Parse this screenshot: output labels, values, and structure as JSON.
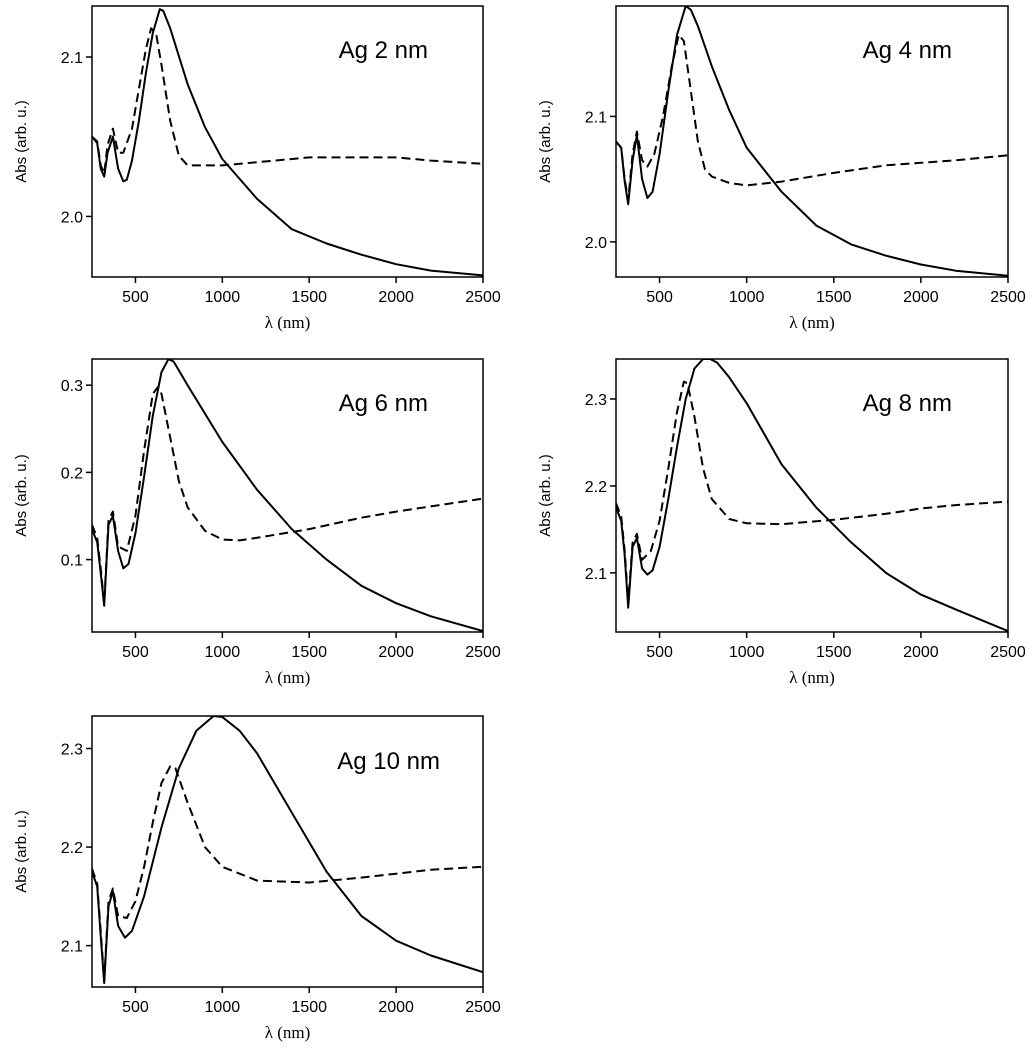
{
  "chart_data": [
    {
      "type": "line",
      "label": "Ag 2 nm",
      "xlabel": "λ  (nm)",
      "ylabel": "Abs (arb. u.)",
      "xlim": [
        250,
        2500
      ],
      "ylim": [
        1.962,
        2.132
      ],
      "xticks": [
        500,
        1000,
        1500,
        2000,
        2500
      ],
      "yticks": [
        2.0,
        2.1
      ],
      "ytick_labels": [
        "2.0",
        "2.1"
      ],
      "series": [
        {
          "style": "solid",
          "x": [
            250,
            280,
            300,
            320,
            340,
            370,
            400,
            430,
            450,
            480,
            520,
            560,
            600,
            640,
            660,
            700,
            800,
            900,
            1000,
            1200,
            1400,
            1600,
            1800,
            2000,
            2200,
            2500
          ],
          "y": [
            2.05,
            2.046,
            2.03,
            2.025,
            2.04,
            2.05,
            2.03,
            2.022,
            2.023,
            2.035,
            2.06,
            2.09,
            2.115,
            2.13,
            2.129,
            2.118,
            2.083,
            2.056,
            2.036,
            2.011,
            1.992,
            1.983,
            1.976,
            1.97,
            1.966,
            1.963
          ]
        },
        {
          "style": "dashed",
          "x": [
            250,
            280,
            300,
            320,
            340,
            370,
            400,
            430,
            480,
            520,
            560,
            590,
            620,
            650,
            700,
            750,
            800,
            1000,
            1200,
            1500,
            1800,
            2000,
            2200,
            2500
          ],
          "y": [
            2.05,
            2.047,
            2.032,
            2.027,
            2.045,
            2.055,
            2.04,
            2.04,
            2.055,
            2.08,
            2.105,
            2.118,
            2.114,
            2.095,
            2.06,
            2.038,
            2.032,
            2.032,
            2.034,
            2.037,
            2.037,
            2.037,
            2.035,
            2.033
          ]
        }
      ]
    },
    {
      "type": "line",
      "label": "Ag 4 nm",
      "xlabel": "λ  (nm)",
      "ylabel": "Abs (arb. u.)",
      "xlim": [
        250,
        2500
      ],
      "ylim": [
        1.972,
        2.188
      ],
      "xticks": [
        500,
        1000,
        1500,
        2000,
        2500
      ],
      "yticks": [
        2.0,
        2.1
      ],
      "ytick_labels": [
        "2.0",
        "2.1"
      ],
      "series": [
        {
          "style": "solid",
          "x": [
            250,
            280,
            300,
            320,
            345,
            370,
            400,
            430,
            460,
            500,
            550,
            600,
            650,
            680,
            720,
            800,
            900,
            1000,
            1200,
            1400,
            1600,
            1800,
            2000,
            2200,
            2500
          ],
          "y": [
            2.08,
            2.075,
            2.048,
            2.03,
            2.065,
            2.085,
            2.05,
            2.035,
            2.04,
            2.07,
            2.12,
            2.165,
            2.188,
            2.185,
            2.172,
            2.14,
            2.105,
            2.075,
            2.04,
            2.013,
            1.998,
            1.989,
            1.982,
            1.977,
            1.973
          ]
        },
        {
          "style": "dashed",
          "x": [
            250,
            280,
            300,
            320,
            345,
            370,
            400,
            430,
            470,
            520,
            570,
            610,
            640,
            680,
            720,
            760,
            800,
            900,
            1000,
            1200,
            1500,
            1800,
            2000,
            2200,
            2500
          ],
          "y": [
            2.08,
            2.075,
            2.05,
            2.033,
            2.07,
            2.088,
            2.065,
            2.06,
            2.07,
            2.1,
            2.14,
            2.165,
            2.16,
            2.12,
            2.08,
            2.058,
            2.052,
            2.047,
            2.045,
            2.048,
            2.055,
            2.061,
            2.063,
            2.065,
            2.069
          ]
        }
      ]
    },
    {
      "type": "line",
      "label": "Ag 6 nm",
      "xlabel": "λ  (nm)",
      "ylabel": "Abs (arb. u.)",
      "xlim": [
        250,
        2500
      ],
      "ylim": [
        0.017,
        0.33
      ],
      "xticks": [
        500,
        1000,
        1500,
        2000,
        2500
      ],
      "yticks": [
        0.1,
        0.2,
        0.3
      ],
      "ytick_labels": [
        "0.1",
        "0.2",
        "0.3"
      ],
      "series": [
        {
          "style": "solid",
          "x": [
            250,
            280,
            300,
            320,
            345,
            370,
            400,
            430,
            460,
            500,
            550,
            600,
            650,
            690,
            720,
            800,
            1000,
            1200,
            1400,
            1600,
            1800,
            2000,
            2200,
            2500
          ],
          "y": [
            0.135,
            0.12,
            0.085,
            0.047,
            0.14,
            0.15,
            0.11,
            0.09,
            0.095,
            0.13,
            0.195,
            0.265,
            0.315,
            0.33,
            0.327,
            0.3,
            0.235,
            0.18,
            0.135,
            0.1,
            0.07,
            0.05,
            0.035,
            0.018
          ]
        },
        {
          "style": "dashed",
          "x": [
            250,
            280,
            300,
            320,
            345,
            370,
            400,
            450,
            500,
            550,
            600,
            630,
            650,
            700,
            750,
            800,
            900,
            1000,
            1100,
            1200,
            1500,
            1800,
            2000,
            2200,
            2500
          ],
          "y": [
            0.14,
            0.125,
            0.09,
            0.05,
            0.145,
            0.155,
            0.115,
            0.11,
            0.15,
            0.225,
            0.29,
            0.298,
            0.29,
            0.24,
            0.19,
            0.16,
            0.133,
            0.123,
            0.122,
            0.125,
            0.135,
            0.148,
            0.155,
            0.161,
            0.17
          ]
        }
      ]
    },
    {
      "type": "line",
      "label": "Ag 8 nm",
      "xlabel": "λ  (nm)",
      "ylabel": "Abs (arb. u.)",
      "xlim": [
        250,
        2500
      ],
      "ylim": [
        2.032,
        2.346
      ],
      "xticks": [
        500,
        1000,
        1500,
        2000,
        2500
      ],
      "yticks": [
        2.1,
        2.2,
        2.3
      ],
      "ytick_labels": [
        "2.1",
        "2.2",
        "2.3"
      ],
      "series": [
        {
          "style": "solid",
          "x": [
            250,
            280,
            300,
            320,
            345,
            370,
            400,
            430,
            460,
            500,
            550,
            600,
            650,
            700,
            750,
            790,
            830,
            900,
            1000,
            1200,
            1400,
            1600,
            1800,
            2000,
            2200,
            2500
          ],
          "y": [
            2.175,
            2.16,
            2.12,
            2.06,
            2.13,
            2.14,
            2.105,
            2.098,
            2.103,
            2.13,
            2.185,
            2.245,
            2.3,
            2.335,
            2.346,
            2.346,
            2.342,
            2.325,
            2.295,
            2.225,
            2.175,
            2.135,
            2.1,
            2.075,
            2.058,
            2.033
          ]
        },
        {
          "style": "dashed",
          "x": [
            250,
            280,
            300,
            320,
            345,
            370,
            400,
            450,
            500,
            550,
            600,
            640,
            660,
            700,
            750,
            800,
            900,
            1000,
            1200,
            1500,
            1800,
            2000,
            2200,
            2500
          ],
          "y": [
            2.18,
            2.165,
            2.125,
            2.065,
            2.135,
            2.145,
            2.115,
            2.125,
            2.16,
            2.22,
            2.285,
            2.32,
            2.318,
            2.28,
            2.22,
            2.185,
            2.162,
            2.157,
            2.156,
            2.161,
            2.168,
            2.174,
            2.178,
            2.182
          ]
        }
      ]
    },
    {
      "type": "line",
      "label": "Ag 10 nm",
      "xlabel": "λ  (nm)",
      "ylabel": "Abs (arb. u.)",
      "xlim": [
        250,
        2500
      ],
      "ylim": [
        2.058,
        2.333
      ],
      "xticks": [
        500,
        1000,
        1500,
        2000,
        2500
      ],
      "yticks": [
        2.1,
        2.2,
        2.3
      ],
      "ytick_labels": [
        "2.1",
        "2.2",
        "2.3"
      ],
      "series": [
        {
          "style": "solid",
          "x": [
            250,
            280,
            300,
            320,
            345,
            370,
            400,
            440,
            480,
            550,
            650,
            750,
            850,
            950,
            1000,
            1100,
            1200,
            1400,
            1600,
            1800,
            2000,
            2200,
            2500
          ],
          "y": [
            2.175,
            2.16,
            2.11,
            2.062,
            2.14,
            2.155,
            2.12,
            2.108,
            2.115,
            2.15,
            2.22,
            2.28,
            2.318,
            2.333,
            2.332,
            2.318,
            2.295,
            2.235,
            2.175,
            2.13,
            2.105,
            2.09,
            2.073
          ]
        },
        {
          "style": "dashed",
          "x": [
            250,
            280,
            300,
            320,
            345,
            370,
            400,
            450,
            500,
            550,
            600,
            650,
            700,
            730,
            800,
            900,
            1000,
            1200,
            1500,
            1800,
            2000,
            2200,
            2500
          ],
          "y": [
            2.178,
            2.163,
            2.115,
            2.065,
            2.145,
            2.158,
            2.13,
            2.128,
            2.145,
            2.18,
            2.225,
            2.265,
            2.282,
            2.28,
            2.245,
            2.2,
            2.18,
            2.166,
            2.164,
            2.169,
            2.173,
            2.177,
            2.18
          ]
        }
      ]
    }
  ]
}
